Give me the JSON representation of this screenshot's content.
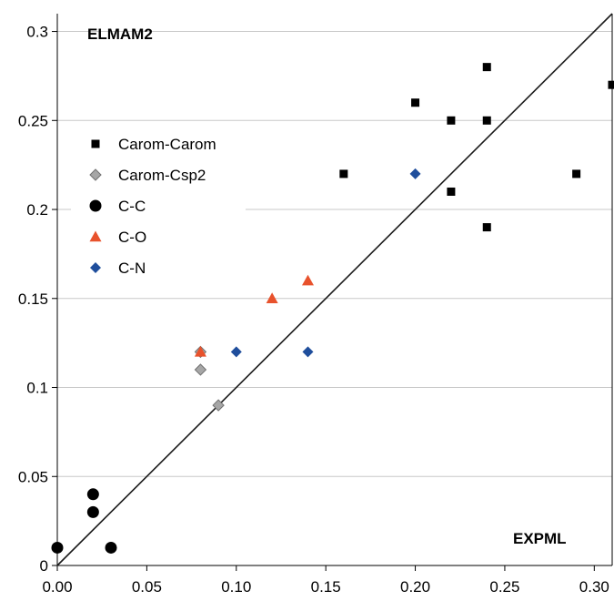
{
  "chart_data": {
    "type": "scatter",
    "title": "",
    "xlabel": "",
    "ylabel": "",
    "corner_labels": {
      "y_axis": "ELMAM2",
      "x_axis": "EXPML"
    },
    "xlim": [
      0,
      0.31
    ],
    "ylim": [
      0,
      0.31
    ],
    "x_ticks": [
      0.0,
      0.05,
      0.1,
      0.15,
      0.2,
      0.25,
      0.3
    ],
    "x_tick_labels": [
      "0.00",
      "0.05",
      "0.10",
      "0.15",
      "0.20",
      "0.25",
      "0.30"
    ],
    "y_ticks": [
      0,
      0.05,
      0.1,
      0.15,
      0.2,
      0.25,
      0.3
    ],
    "y_tick_labels": [
      "0",
      "0.05",
      "0.1",
      "0.15",
      "0.2",
      "0.25",
      "0.3"
    ],
    "grid": "horizontal",
    "legend_position": "left",
    "reference_line": "y = x",
    "series": [
      {
        "name": "Carom-Carom",
        "marker": "square",
        "color": "#000000",
        "points": [
          [
            0.16,
            0.22
          ],
          [
            0.2,
            0.26
          ],
          [
            0.22,
            0.25
          ],
          [
            0.22,
            0.21
          ],
          [
            0.24,
            0.28
          ],
          [
            0.24,
            0.25
          ],
          [
            0.24,
            0.19
          ],
          [
            0.29,
            0.22
          ],
          [
            0.31,
            0.27
          ]
        ]
      },
      {
        "name": "Carom-Csp2",
        "marker": "diamond",
        "color": "#a6a6a6",
        "points": [
          [
            0.08,
            0.12
          ],
          [
            0.08,
            0.11
          ],
          [
            0.09,
            0.09
          ]
        ]
      },
      {
        "name": "C-C",
        "marker": "circle",
        "color": "#000000",
        "points": [
          [
            0.0,
            0.01
          ],
          [
            0.02,
            0.04
          ],
          [
            0.02,
            0.03
          ],
          [
            0.03,
            0.01
          ]
        ]
      },
      {
        "name": "C-O",
        "marker": "triangle",
        "color": "#e8522c",
        "points": [
          [
            0.08,
            0.12
          ],
          [
            0.12,
            0.15
          ],
          [
            0.14,
            0.16
          ]
        ]
      },
      {
        "name": "C-N",
        "marker": "diamond",
        "color": "#1f4e9c",
        "points": [
          [
            0.1,
            0.12
          ],
          [
            0.14,
            0.12
          ],
          [
            0.2,
            0.22
          ]
        ]
      }
    ]
  }
}
